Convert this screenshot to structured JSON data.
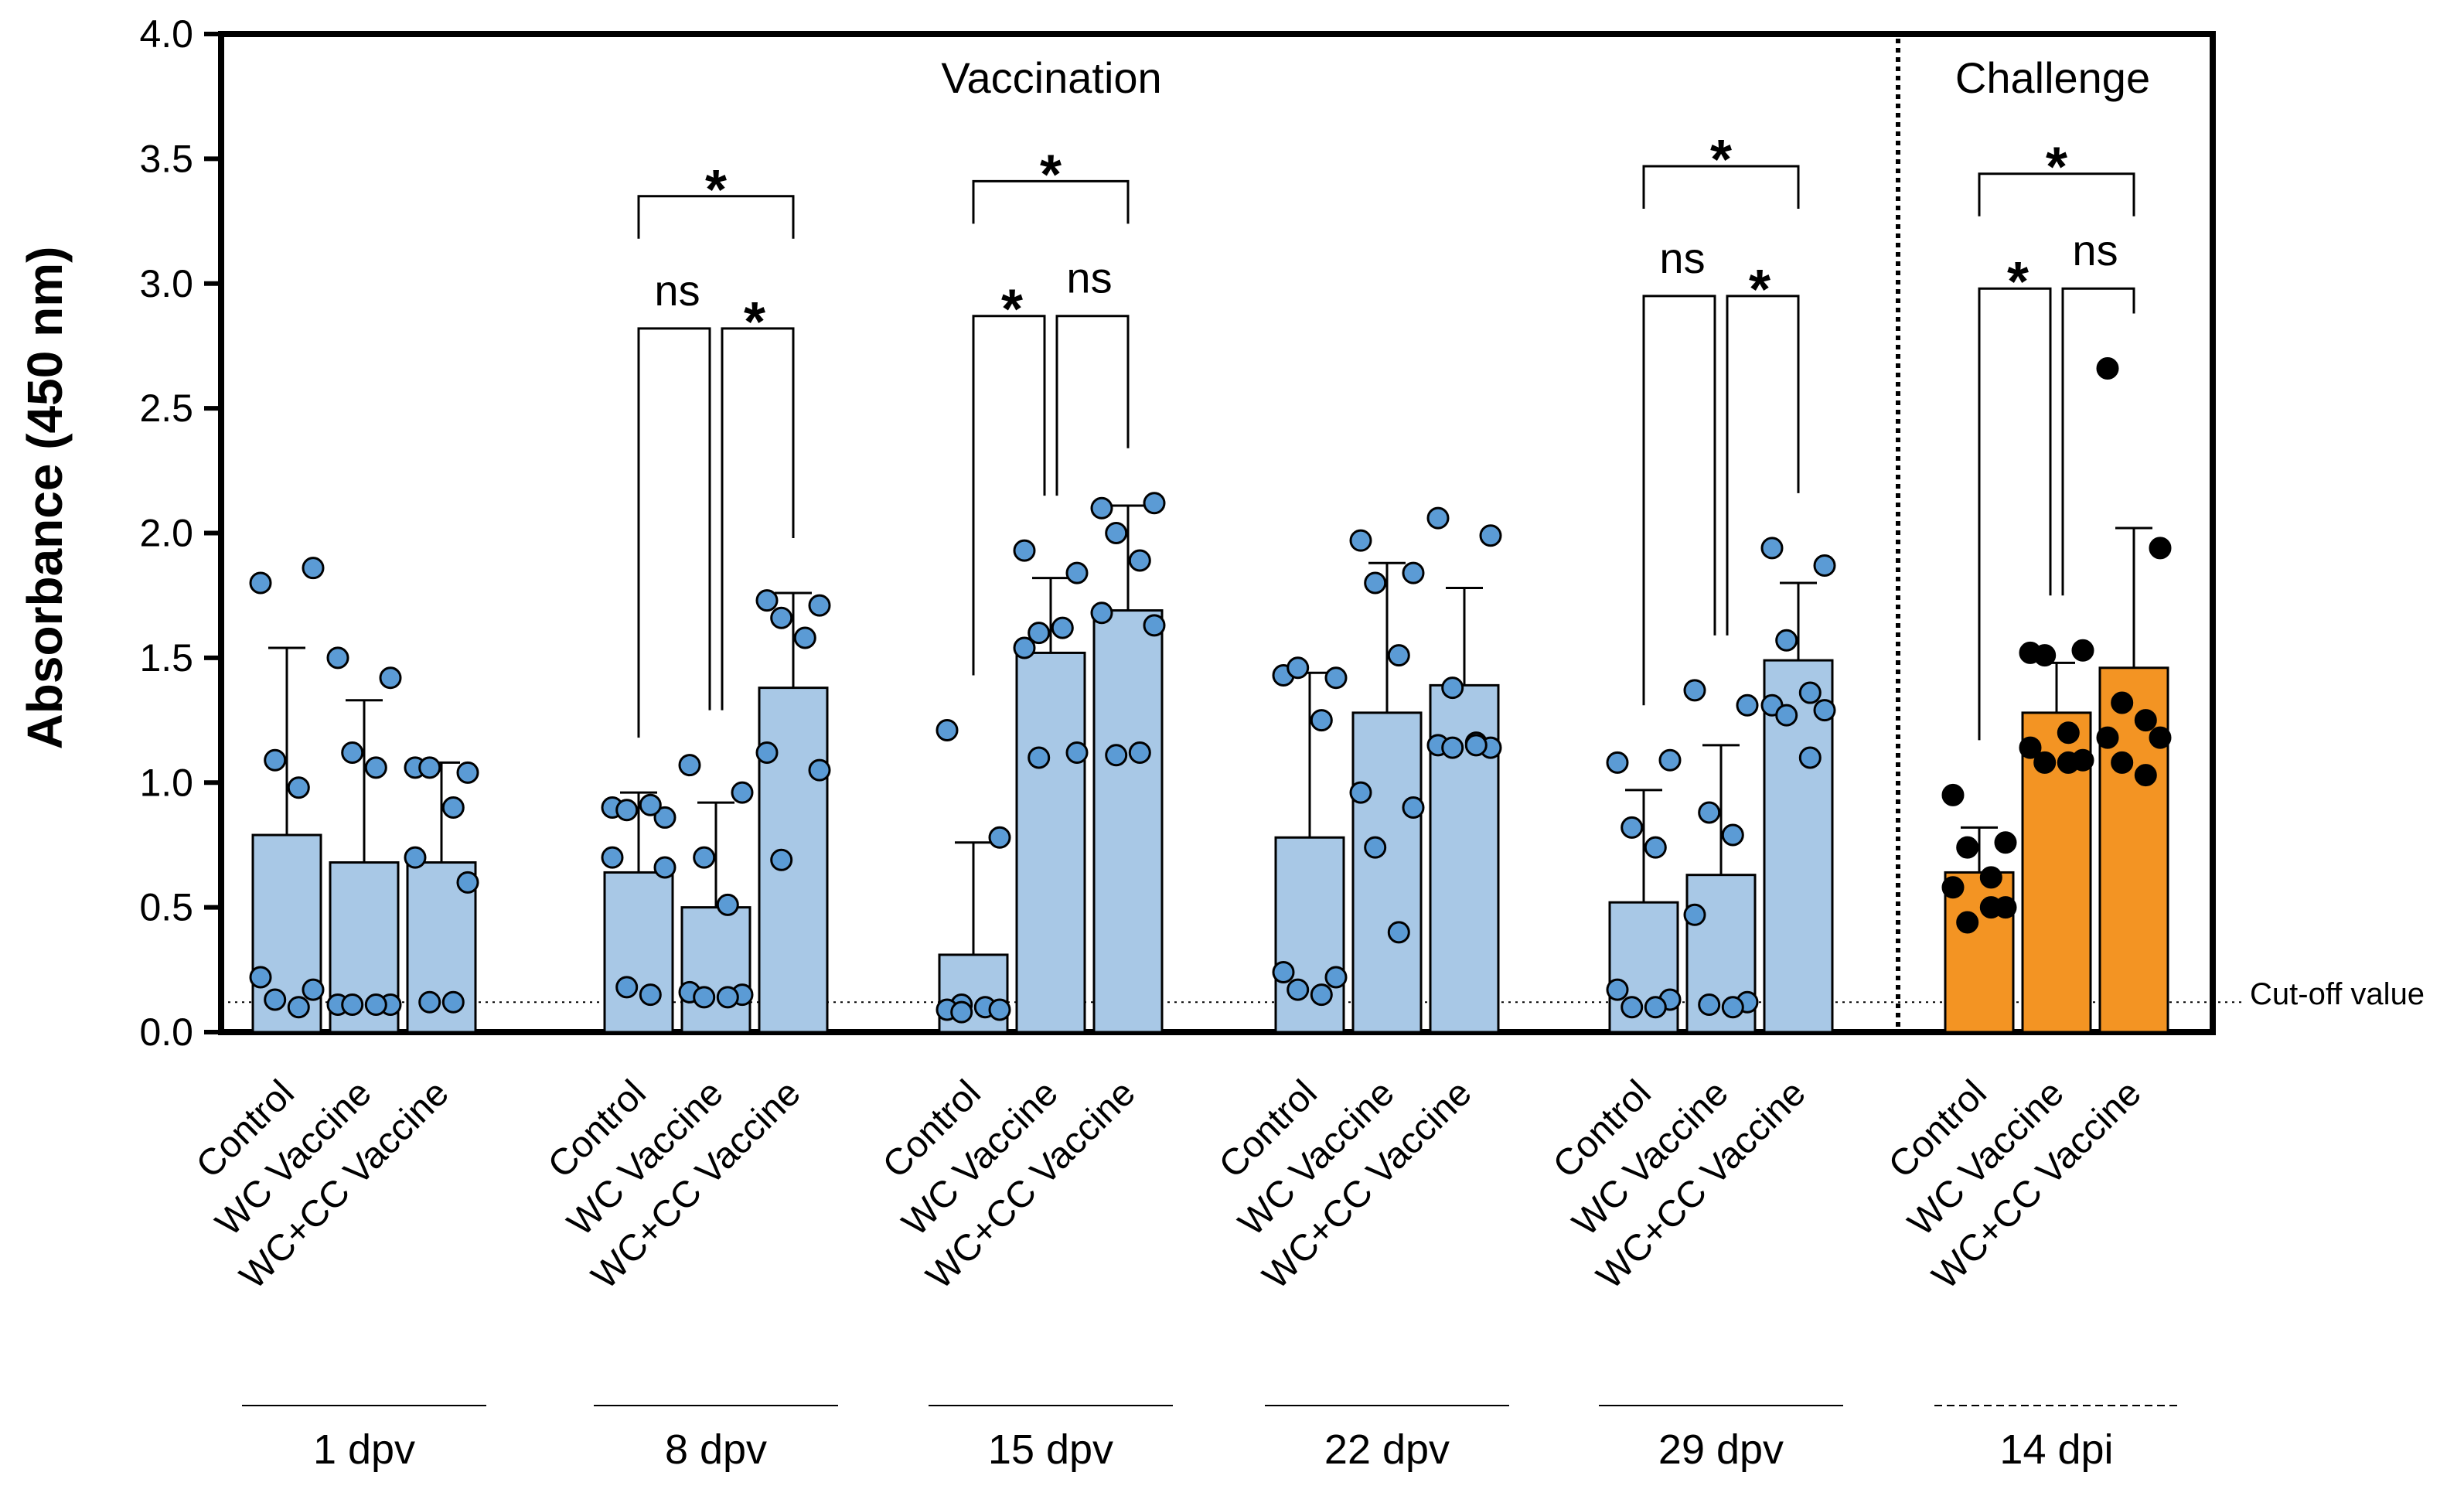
{
  "chart_data": {
    "type": "bar",
    "ylabel": "Absorbance (450 nm)",
    "ylim": [
      0,
      4.0
    ],
    "yticks": [
      "0.0",
      "0.5",
      "1.0",
      "1.5",
      "2.0",
      "2.5",
      "3.0",
      "3.5",
      "4.0"
    ],
    "section_labels": {
      "vaccination": "Vaccination",
      "challenge": "Challenge"
    },
    "cutoff": {
      "value": 0.12,
      "label": "Cut-off value"
    },
    "categories": [
      "Control",
      "WC Vaccine",
      "WC+CC Vaccine"
    ],
    "groups": [
      {
        "label": "1 dpv",
        "phase": "vaccination",
        "bars": [
          {
            "category": "Control",
            "mean": 0.79,
            "sd_top": 1.54,
            "points": [
              1.8,
              1.86,
              1.09,
              0.98,
              0.22,
              0.17,
              0.13,
              0.1
            ]
          },
          {
            "category": "WC Vaccine",
            "mean": 0.68,
            "sd_top": 1.33,
            "points": [
              1.5,
              1.42,
              1.12,
              1.06,
              0.11,
              0.11,
              0.11,
              0.11
            ]
          },
          {
            "category": "WC+CC Vaccine",
            "mean": 0.68,
            "sd_top": 1.08,
            "points": [
              1.06,
              1.04,
              1.06,
              0.9,
              0.7,
              0.6,
              0.12,
              0.12
            ]
          }
        ]
      },
      {
        "label": "8 dpv",
        "phase": "vaccination",
        "bars": [
          {
            "category": "Control",
            "mean": 0.64,
            "sd_top": 0.96,
            "points": [
              0.9,
              0.86,
              0.89,
              0.91,
              0.7,
              0.66,
              0.18,
              0.15
            ]
          },
          {
            "category": "WC Vaccine",
            "mean": 0.5,
            "sd_top": 0.92,
            "points": [
              1.07,
              0.96,
              0.7,
              0.51,
              0.16,
              0.15,
              0.14,
              0.14
            ]
          },
          {
            "category": "WC+CC Vaccine",
            "mean": 1.38,
            "sd_top": 1.76,
            "points": [
              1.73,
              1.71,
              1.66,
              1.58,
              1.12,
              1.05,
              0.69
            ]
          }
        ]
      },
      {
        "label": "15 dpv",
        "phase": "vaccination",
        "bars": [
          {
            "category": "Control",
            "mean": 0.31,
            "sd_top": 0.76,
            "points": [
              1.21,
              0.78,
              0.11,
              0.1,
              0.09,
              0.09,
              0.08
            ]
          },
          {
            "category": "WC Vaccine",
            "mean": 1.52,
            "sd_top": 1.82,
            "points": [
              1.93,
              1.84,
              1.6,
              1.62,
              1.54,
              1.12,
              1.1
            ]
          },
          {
            "category": "WC+CC Vaccine",
            "mean": 1.69,
            "sd_top": 2.11,
            "points": [
              2.1,
              2.12,
              2.0,
              1.89,
              1.68,
              1.63,
              1.11,
              1.12
            ]
          }
        ]
      },
      {
        "label": "22 dpv",
        "phase": "vaccination",
        "bars": [
          {
            "category": "Control",
            "mean": 0.78,
            "sd_top": 1.44,
            "points": [
              1.43,
              1.42,
              1.46,
              1.25,
              0.24,
              0.22,
              0.17,
              0.15
            ]
          },
          {
            "category": "WC Vaccine",
            "mean": 1.28,
            "sd_top": 1.88,
            "points": [
              1.97,
              1.84,
              1.8,
              1.51,
              0.96,
              0.9,
              0.74,
              0.4
            ]
          },
          {
            "category": "WC+CC Vaccine",
            "mean": 1.39,
            "sd_top": 1.78,
            "points": [
              2.06,
              1.99,
              1.38,
              1.16,
              1.15,
              1.14,
              1.14,
              1.15
            ]
          }
        ]
      },
      {
        "label": "29 dpv",
        "phase": "vaccination",
        "bars": [
          {
            "category": "Control",
            "mean": 0.52,
            "sd_top": 0.97,
            "points": [
              1.08,
              1.09,
              0.82,
              0.74,
              0.17,
              0.13,
              0.1,
              0.1
            ]
          },
          {
            "category": "WC Vaccine",
            "mean": 0.63,
            "sd_top": 1.15,
            "points": [
              1.37,
              1.31,
              0.88,
              0.79,
              0.47,
              0.12,
              0.11,
              0.1
            ]
          },
          {
            "category": "WC+CC Vaccine",
            "mean": 1.49,
            "sd_top": 1.8,
            "points": [
              1.94,
              1.87,
              1.57,
              1.36,
              1.31,
              1.29,
              1.27,
              1.1
            ]
          }
        ]
      },
      {
        "label": "14 dpi",
        "phase": "challenge",
        "bars": [
          {
            "category": "Control",
            "mean": 0.64,
            "sd_top": 0.82,
            "points": [
              0.95,
              0.76,
              0.74,
              0.62,
              0.58,
              0.5,
              0.44,
              0.5
            ]
          },
          {
            "category": "WC Vaccine",
            "mean": 1.28,
            "sd_top": 1.48,
            "points": [
              1.52,
              1.53,
              1.51,
              1.2,
              1.14,
              1.09,
              1.08,
              1.08
            ]
          },
          {
            "category": "WC+CC Vaccine",
            "mean": 1.46,
            "sd_top": 2.02,
            "points": [
              2.66,
              1.94,
              1.32,
              1.25,
              1.18,
              1.18,
              1.08,
              1.03
            ]
          }
        ]
      }
    ],
    "annotations": [
      {
        "group": 1,
        "from": 0,
        "to": 2,
        "level": 3.35,
        "label": "*"
      },
      {
        "group": 1,
        "from": 0,
        "to": 1,
        "level": 2.82,
        "label": "ns"
      },
      {
        "group": 1,
        "from": 1,
        "to": 2,
        "level": 2.82,
        "label": "*"
      },
      {
        "group": 2,
        "from": 0,
        "to": 2,
        "level": 3.41,
        "label": "*"
      },
      {
        "group": 2,
        "from": 0,
        "to": 1,
        "level": 2.87,
        "label": "*"
      },
      {
        "group": 2,
        "from": 1,
        "to": 2,
        "level": 2.87,
        "label": "ns"
      },
      {
        "group": 4,
        "from": 0,
        "to": 2,
        "level": 3.47,
        "label": "*"
      },
      {
        "group": 4,
        "from": 0,
        "to": 1,
        "level": 2.95,
        "label": "ns"
      },
      {
        "group": 4,
        "from": 1,
        "to": 2,
        "level": 2.95,
        "label": "*"
      },
      {
        "group": 5,
        "from": 0,
        "to": 2,
        "level": 3.44,
        "label": "*"
      },
      {
        "group": 5,
        "from": 0,
        "to": 1,
        "level": 2.98,
        "label": "*"
      },
      {
        "group": 5,
        "from": 1,
        "to": 2,
        "level": 2.98,
        "label": "ns"
      }
    ],
    "colors": {
      "vaccination_bar": "#a8c8e6",
      "vaccination_point": "#5b9bd5",
      "challenge_bar": "#f39423",
      "challenge_point": "#000000",
      "outline": "#000000"
    }
  }
}
